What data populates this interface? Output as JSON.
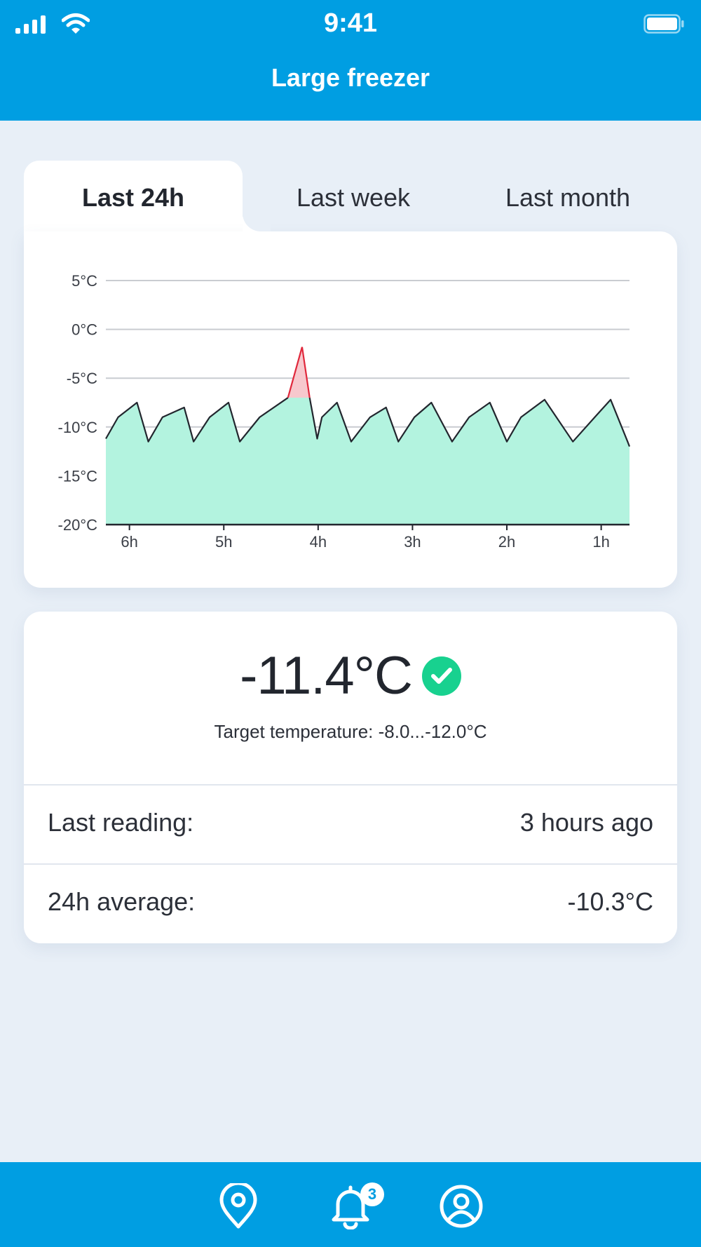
{
  "status_bar": {
    "time": "9:41"
  },
  "header": {
    "title": "Large freezer"
  },
  "tabs": [
    {
      "label": "Last 24h",
      "active": true
    },
    {
      "label": "Last week",
      "active": false
    },
    {
      "label": "Last month",
      "active": false
    }
  ],
  "colors": {
    "accent": "#009ee2",
    "fill_normal": "#b3f3df",
    "fill_alert": "#f7c8cd",
    "line_alert": "#e0283c",
    "ok_green": "#18d18f"
  },
  "chart_data": {
    "type": "area",
    "title": "",
    "xlabel": "",
    "ylabel": "",
    "y_ticks": [
      "5°C",
      "0°C",
      "-5°C",
      "-10°C",
      "-15°C",
      "-20°C"
    ],
    "y_tick_values": [
      5,
      0,
      -5,
      -10,
      -15,
      -20
    ],
    "x_ticks": [
      "6h",
      "5h",
      "4h",
      "3h",
      "2h",
      "1h"
    ],
    "x_tick_values": [
      6,
      5,
      4,
      3,
      2,
      1
    ],
    "xlim": [
      6.25,
      0.7
    ],
    "ylim": [
      -20,
      5
    ],
    "grid": true,
    "threshold_max": -7,
    "series": [
      {
        "x": [
          6.25,
          6.12,
          5.92,
          5.8,
          5.65,
          5.42,
          5.32,
          5.15,
          4.95,
          4.83,
          4.62,
          4.32,
          4.17,
          4.09,
          4.01,
          3.96,
          3.8,
          3.65,
          3.45,
          3.28,
          3.15,
          2.98,
          2.8,
          2.58,
          2.4,
          2.18,
          2.0,
          1.85,
          1.6,
          1.3,
          1.05,
          0.9,
          0.72,
          0.7
        ],
        "y": [
          -11.2,
          -9.0,
          -7.5,
          -11.5,
          -9.0,
          -8.0,
          -11.5,
          -9.0,
          -7.5,
          -11.5,
          -9.0,
          -7.0,
          -1.8,
          -7.0,
          -11.2,
          -9.0,
          -7.5,
          -11.5,
          -9.0,
          -8.0,
          -11.5,
          -9.0,
          -7.5,
          -11.5,
          -9.0,
          -7.5,
          -11.5,
          -9.0,
          -7.2,
          -11.5,
          -8.8,
          -7.2,
          -11.5,
          -12.0
        ]
      }
    ]
  },
  "reading": {
    "current": "-11.4°C",
    "status_icon": "check-icon",
    "target": "Target temperature: -8.0...-12.0°C",
    "last_reading_label": "Last reading:",
    "last_reading_value": "3 hours ago",
    "average_label": "24h average:",
    "average_value": "-10.3°C"
  },
  "bottom_nav": {
    "items": [
      "location-pin-icon",
      "bell-icon",
      "user-icon"
    ],
    "notifications_count": "3"
  }
}
